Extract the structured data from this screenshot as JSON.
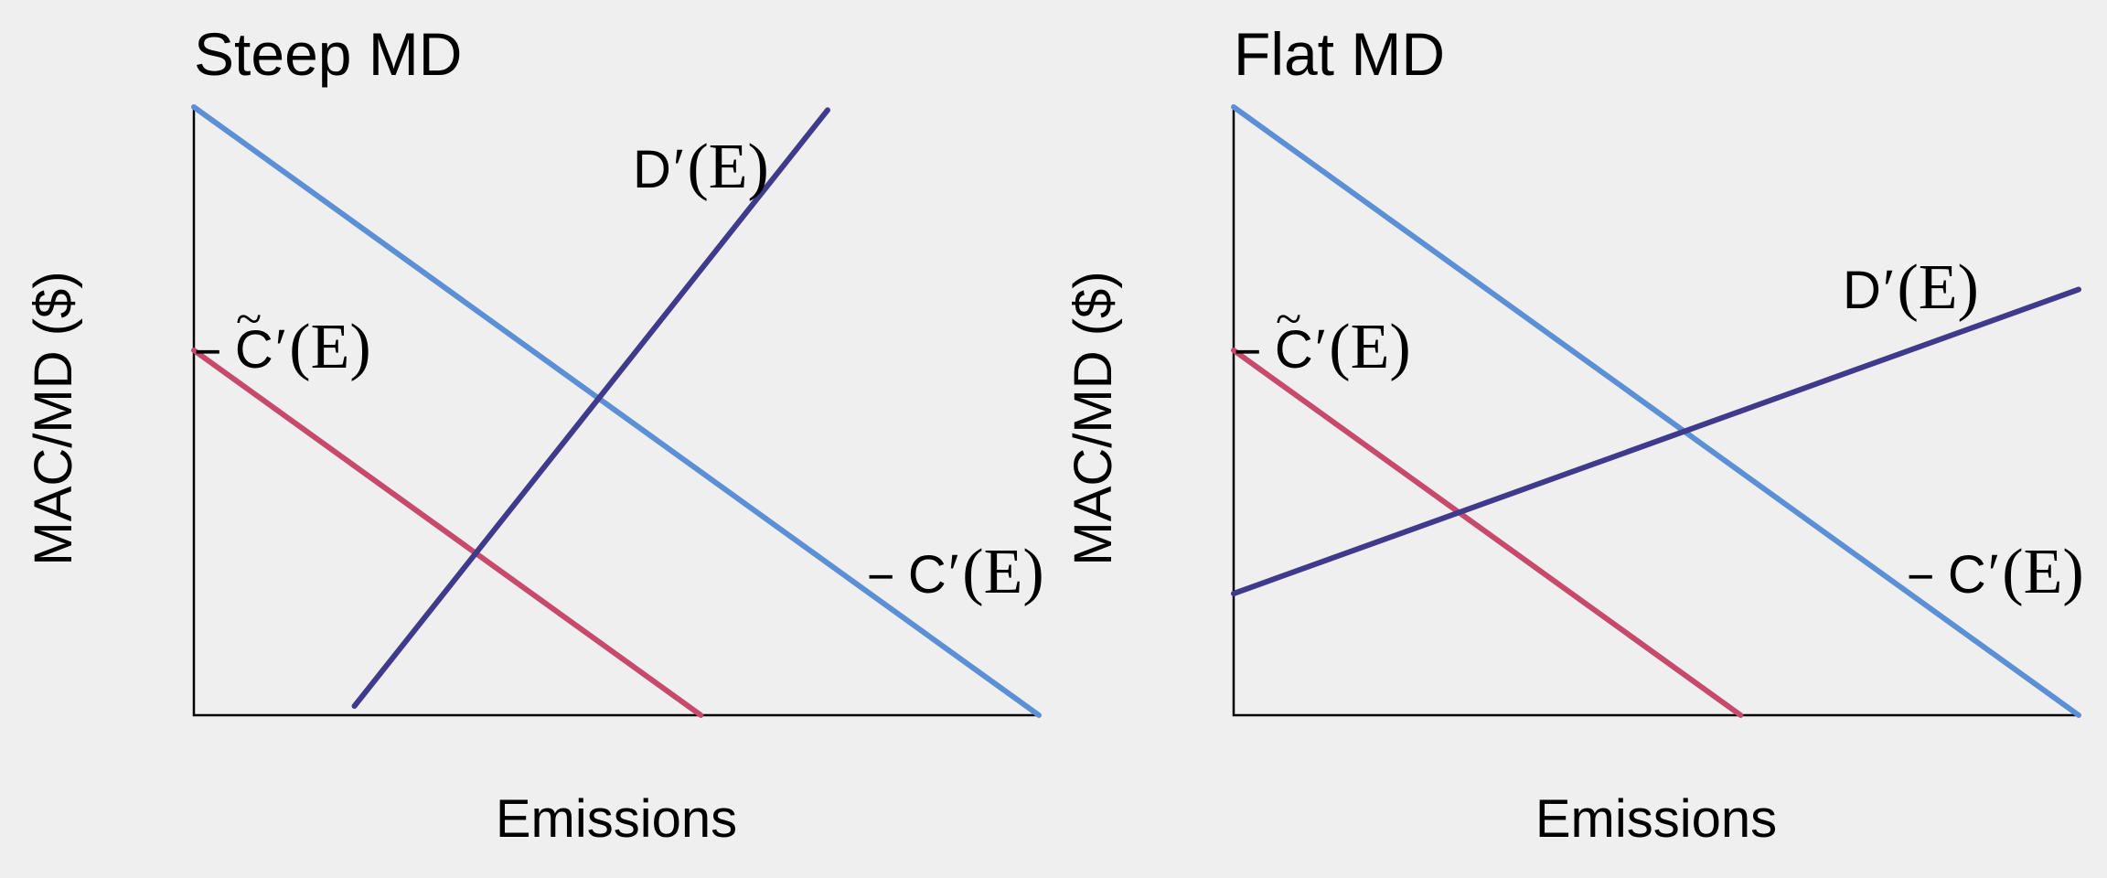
{
  "colors": {
    "background": "#efefef",
    "total_mac": "#5b8fd6",
    "reduced_mac": "#c74a6d",
    "marginal_damage": "#3f3a8c"
  },
  "chart_data": [
    {
      "type": "line",
      "title": "Steep MD",
      "xlabel": "Emissions",
      "ylabel": "MAC/MD ($)",
      "grid": false,
      "xlim": [
        0,
        100
      ],
      "ylim": [
        0,
        100
      ],
      "series": [
        {
          "key": "total_mac",
          "label": {
            "prefix": "−",
            "letter": "C",
            "tilde": false,
            "prime": "′",
            "arg": "(E)"
          },
          "x": [
            0,
            100
          ],
          "y": [
            100,
            0
          ]
        },
        {
          "key": "reduced_mac",
          "label": {
            "prefix": "−",
            "letter": "C",
            "tilde": true,
            "prime": "′",
            "arg": "(E)"
          },
          "x": [
            0,
            60
          ],
          "y": [
            60,
            0
          ]
        },
        {
          "key": "marginal_damage",
          "label": {
            "prefix": "",
            "letter": "D",
            "tilde": false,
            "prime": "′",
            "arg": "(E)"
          },
          "x": [
            19,
            75
          ],
          "y": [
            1.5,
            99.5
          ]
        }
      ]
    },
    {
      "type": "line",
      "title": "Flat MD",
      "xlabel": "Emissions",
      "ylabel": "MAC/MD ($)",
      "grid": false,
      "xlim": [
        0,
        100
      ],
      "ylim": [
        0,
        100
      ],
      "series": [
        {
          "key": "total_mac",
          "label": {
            "prefix": "−",
            "letter": "C",
            "tilde": false,
            "prime": "′",
            "arg": "(E)"
          },
          "x": [
            0,
            100
          ],
          "y": [
            100,
            0
          ]
        },
        {
          "key": "reduced_mac",
          "label": {
            "prefix": "−",
            "letter": "C",
            "tilde": true,
            "prime": "′",
            "arg": "(E)"
          },
          "x": [
            0,
            60
          ],
          "y": [
            60,
            0
          ]
        },
        {
          "key": "marginal_damage",
          "label": {
            "prefix": "",
            "letter": "D",
            "tilde": false,
            "prime": "′",
            "arg": "(E)"
          },
          "x": [
            0,
            100
          ],
          "y": [
            20,
            70
          ]
        }
      ]
    }
  ]
}
